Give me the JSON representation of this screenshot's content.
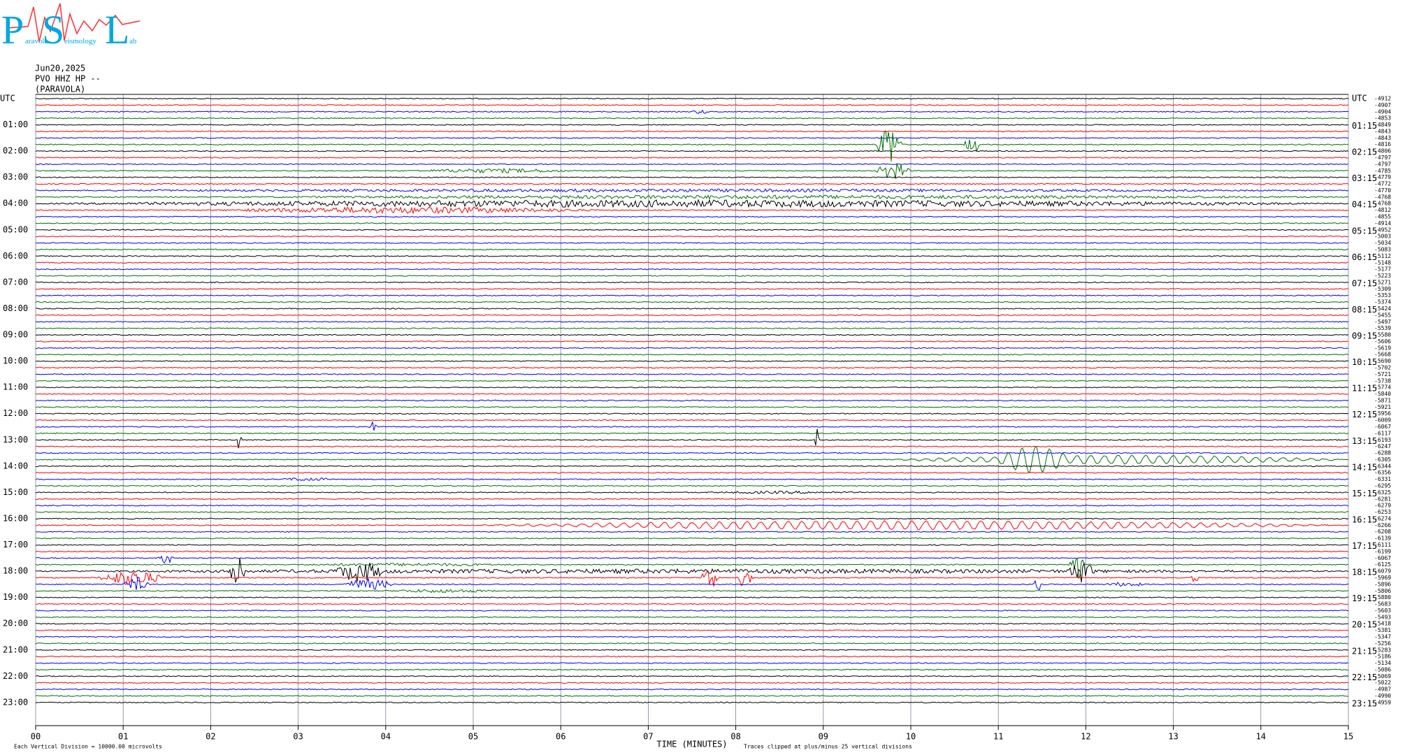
{
  "logo": {
    "letters": [
      "P",
      "S",
      "L"
    ],
    "words": [
      "aravola",
      "eismology",
      "ab"
    ]
  },
  "station": {
    "date": "Jun20,2025",
    "channel": "PVO HHZ HP --",
    "name": "(PARAVOLA)"
  },
  "left_labels": [
    "UTC",
    "01:00",
    "02:00",
    "03:00",
    "04:00",
    "05:00",
    "06:00",
    "07:00",
    "08:00",
    "09:00",
    "10:00",
    "11:00",
    "12:00",
    "13:00",
    "14:00",
    "15:00",
    "16:00",
    "17:00",
    "18:00",
    "19:00",
    "20:00",
    "21:00",
    "22:00",
    "23:00"
  ],
  "right_labels": [
    "UTC",
    "01:15",
    "02:15",
    "03:15",
    "04:15",
    "05:15",
    "06:15",
    "07:15",
    "08:15",
    "09:15",
    "10:15",
    "11:15",
    "12:15",
    "13:15",
    "14:15",
    "15:15",
    "16:15",
    "17:15",
    "18:15",
    "19:15",
    "20:15",
    "21:15",
    "22:15",
    "23:15"
  ],
  "trace_offsets": [
    -4912,
    -4907,
    -4904,
    -4853,
    -4849,
    -4843,
    -4843,
    -4816,
    -4806,
    -4797,
    -4797,
    -4785,
    -4779,
    -4772,
    -4770,
    -4768,
    -4768,
    -4812,
    -4855,
    -4914,
    -4952,
    -5003,
    -5034,
    -5083,
    -5112,
    -5148,
    -5177,
    -5223,
    -5271,
    -5309,
    -5353,
    -5374,
    -5424,
    -5455,
    -5497,
    -5539,
    -5580,
    -5606,
    -5619,
    -5668,
    -5690,
    -5702,
    -5721,
    -5738,
    -5774,
    -5840,
    -5871,
    -5921,
    -5956,
    -6009,
    -6067,
    -6117,
    -6193,
    -6247,
    -6288,
    -6305,
    -6344,
    -6356,
    -6331,
    -6295,
    -6325,
    -6281,
    -6279,
    -6253,
    -6274,
    -6266,
    -6208,
    -6139,
    -6111,
    -6199,
    -6067,
    -6125,
    -6079,
    -5969,
    -5896,
    -5806,
    -5880,
    -5683,
    -5603,
    -5493,
    -5418,
    -5381,
    -5347,
    -5256,
    -5283,
    -5186,
    -5134,
    -5086,
    -5069,
    -5022,
    -4987,
    -4990,
    -4959
  ],
  "trace_colors": [
    "#000000",
    "#ff0000",
    "#0000ff",
    "#007000"
  ],
  "x_axis": {
    "ticks": [
      "00",
      "01",
      "02",
      "03",
      "04",
      "05",
      "06",
      "07",
      "08",
      "09",
      "10",
      "11",
      "12",
      "13",
      "14",
      "15"
    ],
    "title": "TIME (MINUTES)"
  },
  "footer": {
    "scale": "Each Vertical Division = 10000.00 microvolts",
    "clip": "Traces clipped at plus/minus 25 vertical divisions"
  }
}
